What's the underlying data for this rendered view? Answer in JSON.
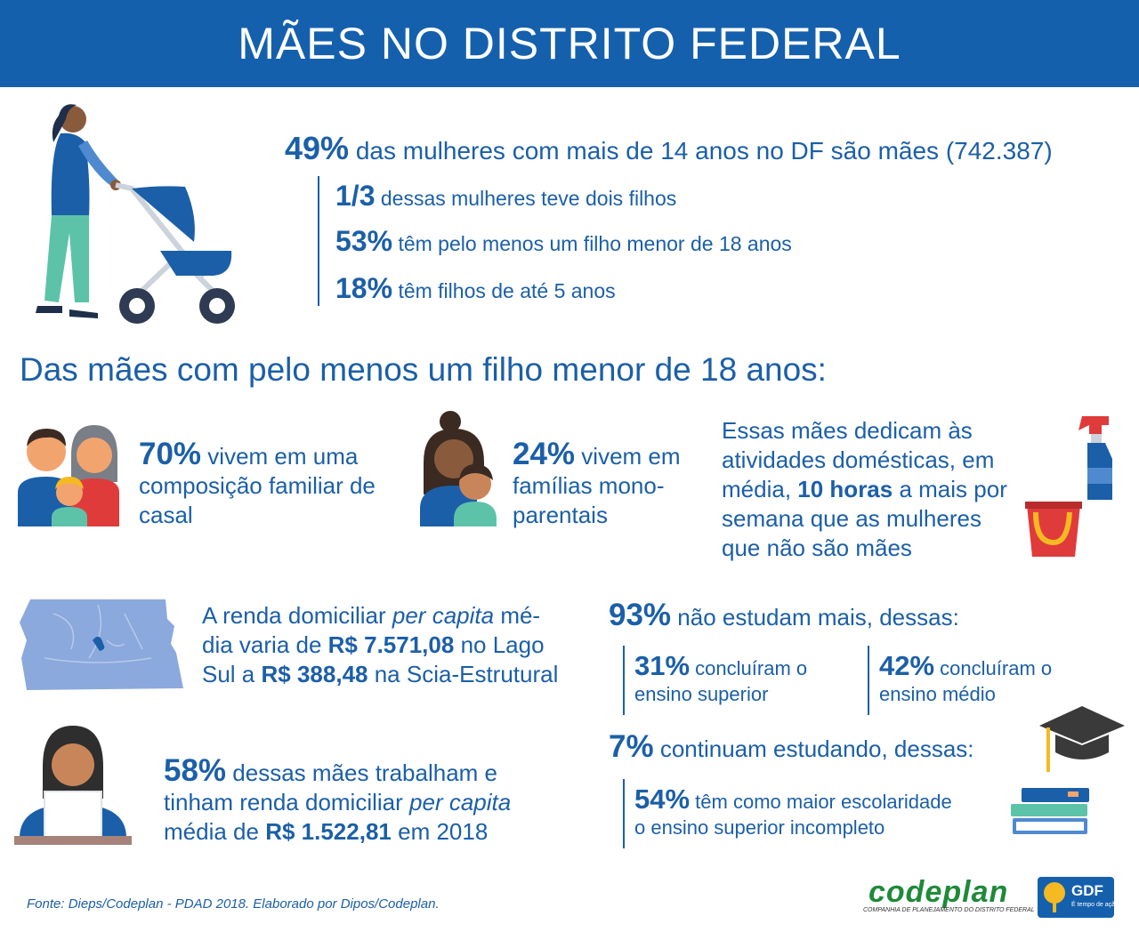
{
  "header": {
    "title": "MÃES NO DISTRITO FEDERAL"
  },
  "top": {
    "main_pct": "49%",
    "main_text": "das mulheres com mais de 14 anos no DF são mães (742.387)",
    "items": [
      {
        "pct": "1/3",
        "text": "dessas mulheres teve dois filhos"
      },
      {
        "pct": "53%",
        "text": "têm pelo menos um filho menor de 18 anos"
      },
      {
        "pct": "18%",
        "text": "têm filhos de até 5 anos"
      }
    ]
  },
  "section": {
    "title": "Das mães com pelo menos um filho menor de 18 anos:"
  },
  "family": {
    "couple_pct": "70%",
    "couple_text_1": "vivem em uma",
    "couple_text_2": "composição familiar de",
    "couple_text_3": "casal",
    "single_pct": "24%",
    "single_text_1": "vivem em",
    "single_text_2": "famílias mono-",
    "single_text_3": "parentais",
    "domestic_1": "Essas mães dedicam às",
    "domestic_2": "atividades domésticas, em",
    "domestic_3a": "média,",
    "domestic_3b": "10 horas",
    "domestic_3c": "a mais por",
    "domestic_4": "semana  que as mulheres",
    "domestic_5": "que não são mães"
  },
  "income": {
    "l1a": "A renda domiciliar",
    "l1b": "per capita",
    "l1c": "mé-",
    "l2a": "dia varia de",
    "l2b": "R$ 7.571,08",
    "l2c": "no Lago",
    "l3a": "Sul a",
    "l3b": "R$ 388,48",
    "l3c": "na Scia-Estrutural"
  },
  "work": {
    "pct": "58%",
    "l1": "dessas mães trabalham e",
    "l2a": "tinham renda domiciliar",
    "l2b": "per capita",
    "l3a": "média de",
    "l3b": "R$ 1.522,81",
    "l3c": "em 2018"
  },
  "education": {
    "not_pct": "93%",
    "not_text": "não estudam mais, dessas:",
    "sup_pct": "31%",
    "sup_text_1": "concluíram o",
    "sup_text_2": "ensino superior",
    "med_pct": "42%",
    "med_text_1": "concluíram o",
    "med_text_2": "ensino médio",
    "cont_pct": "7%",
    "cont_text": "continuam estudando, dessas:",
    "inc_pct": "54%",
    "inc_text_1": "têm como maior escolaridade",
    "inc_text_2": "o ensino superior incompleto"
  },
  "footer": {
    "source": "Fonte: Dieps/Codeplan - PDAD 2018. Elaborado por Dipos/Codeplan.",
    "codeplan": "codeplan",
    "codeplan_sub": "COMPANHIA DE PLANEJAMENTO DO DISTRITO FEDERAL",
    "gdf": "GDF",
    "gdf_sub": "É tempo de ação"
  },
  "icons": {
    "mother": "mother-stroller-icon",
    "couple": "family-couple-icon",
    "single": "single-parent-icon",
    "cleaning": "cleaning-supplies-icon",
    "map": "df-map-icon",
    "worker": "woman-laptop-icon",
    "grad": "graduation-cap-icon",
    "books": "books-icon"
  },
  "colors": {
    "header": "#1560ad",
    "text": "#1b5fa8",
    "map": "#8ba9dc"
  }
}
